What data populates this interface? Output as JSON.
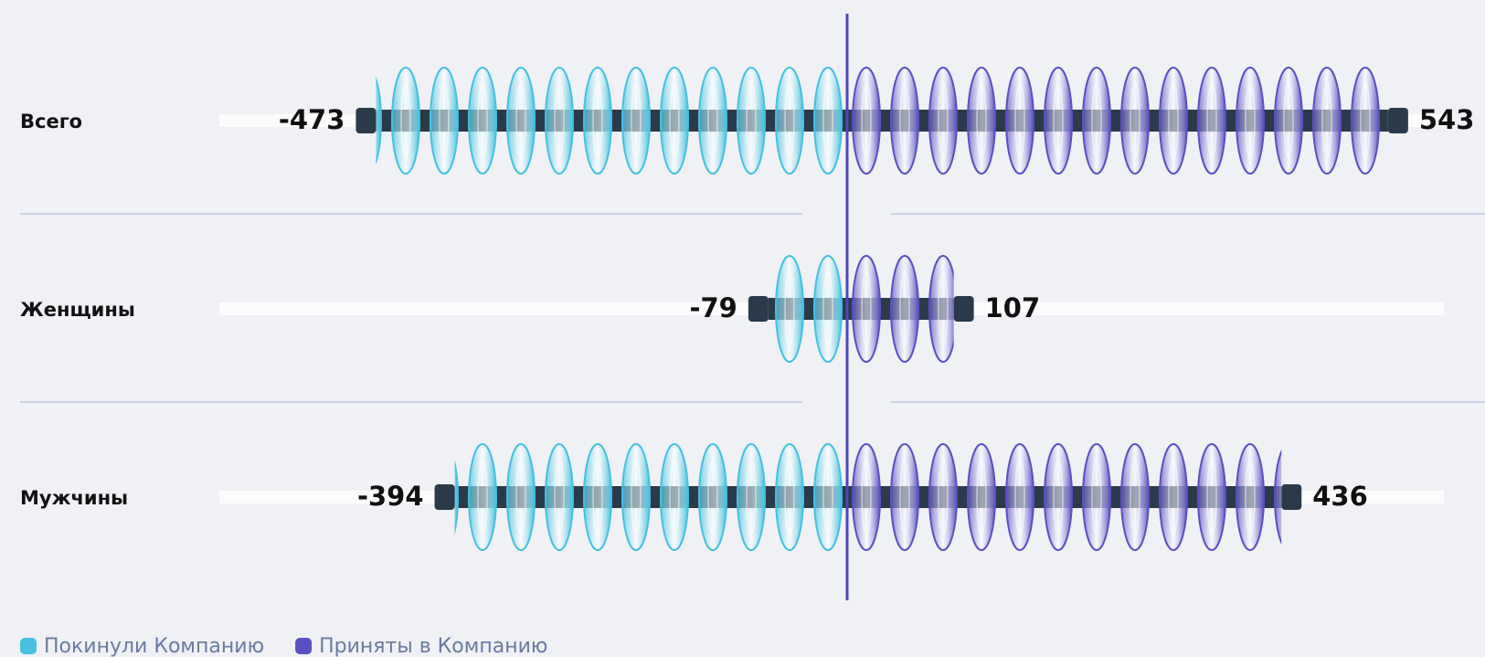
{
  "chart_data": {
    "type": "bar",
    "categories": [
      "Всего",
      "Женщины",
      "Мужчины"
    ],
    "series": [
      {
        "name": "Покинули Компанию",
        "color": "#46c1df",
        "values": [
          -473,
          -79,
          -394
        ]
      },
      {
        "name": "Приняты в Компанию",
        "color": "#5a50c2",
        "values": [
          543,
          107,
          436
        ]
      }
    ]
  }
}
